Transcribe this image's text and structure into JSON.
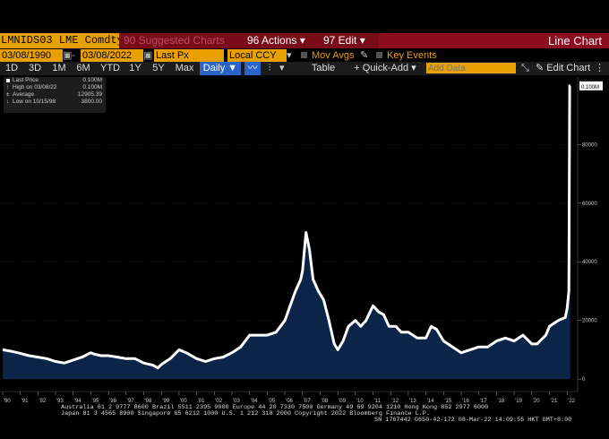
{
  "toolbar1": {
    "ticker": "LMNIDS03 LME Comdty",
    "suggested": "90 Suggested Charts",
    "actions": "96 Actions ▾",
    "edit": "97 Edit ▾",
    "chart_title": "Line Chart"
  },
  "toolbar2": {
    "start_date": "03/08/1990",
    "end_date": "03/08/2022",
    "field": "Last Px",
    "currency": "Local CCY",
    "mov_avgs": "Mov Avgs",
    "key_events": "Key Events"
  },
  "toolbar3": {
    "ranges": [
      "1D",
      "3D",
      "1M",
      "6M",
      "YTD",
      "1Y",
      "5Y",
      "Max"
    ],
    "frequency": "Daily ▼",
    "table": "Table",
    "quick_add": "+ Quick-Add ▾",
    "add_data_placeholder": "Add Data",
    "edit_chart": "Edit Chart"
  },
  "legend": {
    "last_price_label": "Last Price",
    "last_price_value": "0.100M",
    "high_label": "High on 03/08/22",
    "high_value": "0.100M",
    "average_label": "Average",
    "average_value": "12905.39",
    "low_label": "Low on 10/15/98",
    "low_value": "3800.00"
  },
  "footer": {
    "line1": "Australia 61 2 9777 8600  Brazil 5511 2395 9000  Europe 44 20 7330 7500  Germany 49 69 9204 1210  Hong Kong 852 2977 6000",
    "line2": "Japan 81 3 4565 8900          Singapore 65 6212 1000          U.S. 1 212 318 2000           Copyright 2022 Bloomberg Finance L.P.",
    "line3": "SN 1767442 G650-42-172 08-Mar-22 14:09:55 HKT  GMT+8:00"
  },
  "colors": {
    "line": "#ffffff",
    "fill": "#0b2447",
    "accent": "#e8a000",
    "header": "#8b0d1e"
  },
  "chart_data": {
    "type": "area",
    "series": [
      {
        "name": "Last Price",
        "x": [
          1990.0,
          1990.5,
          1991.0,
          1991.5,
          1992.0,
          1992.5,
          1993.0,
          1993.5,
          1994.0,
          1994.5,
          1995.0,
          1995.2,
          1995.6,
          1996.0,
          1996.5,
          1997.0,
          1997.5,
          1998.0,
          1998.5,
          1998.8,
          1999.0,
          1999.5,
          2000.0,
          2000.4,
          2001.0,
          2001.5,
          2002.0,
          2002.5,
          2003.0,
          2003.5,
          2004.0,
          2004.5,
          2005.0,
          2005.5,
          2006.0,
          2006.3,
          2006.6,
          2006.9,
          2007.0,
          2007.2,
          2007.4,
          2007.6,
          2007.9,
          2008.2,
          2008.5,
          2008.8,
          2009.0,
          2009.3,
          2009.6,
          2010.0,
          2010.3,
          2010.6,
          2011.0,
          2011.3,
          2011.6,
          2011.9,
          2012.3,
          2012.6,
          2013.0,
          2013.5,
          2014.0,
          2014.3,
          2014.6,
          2015.0,
          2015.5,
          2016.0,
          2016.5,
          2017.0,
          2017.5,
          2018.0,
          2018.5,
          2019.0,
          2019.5,
          2020.0,
          2020.3,
          2020.8,
          2021.0,
          2021.5,
          2021.9,
          2022.0,
          2022.1,
          2022.15,
          2022.18
        ],
        "values": [
          10000,
          9500,
          8800,
          8000,
          7500,
          7000,
          6000,
          5500,
          6500,
          7500,
          9000,
          8500,
          8000,
          8000,
          7500,
          7000,
          7000,
          5500,
          4800,
          3800,
          5000,
          7000,
          10000,
          9000,
          7000,
          6000,
          7000,
          7500,
          9000,
          11000,
          15000,
          15000,
          15000,
          16000,
          20000,
          25000,
          30000,
          34000,
          37000,
          50000,
          44000,
          34000,
          30000,
          27000,
          20000,
          12000,
          10000,
          13000,
          18000,
          20000,
          18000,
          20000,
          25000,
          23000,
          22000,
          18000,
          18000,
          16000,
          16000,
          14000,
          14000,
          18000,
          17000,
          13000,
          11000,
          9000,
          10000,
          11000,
          11000,
          13000,
          14000,
          13000,
          15000,
          12000,
          12000,
          15000,
          18000,
          20000,
          21000,
          24000,
          30000,
          100000,
          100000
        ]
      }
    ],
    "xlim": [
      1989.85,
      2022.6
    ],
    "ylim": [
      -3000,
      103000
    ],
    "x_tick_labels": [
      "'90",
      "'91",
      "'92",
      "'93",
      "'94",
      "'95",
      "'96",
      "'97",
      "'98",
      "'99",
      "'00",
      "'01",
      "'02",
      "'03",
      "'04",
      "'05",
      "'06",
      "'07",
      "'08",
      "'09",
      "'10",
      "'11",
      "'12",
      "'13",
      "'14",
      "'15",
      "'16",
      "'17",
      "'18",
      "'19",
      "'20",
      "'21",
      "'22"
    ],
    "y_ticks": [
      0,
      20000,
      40000,
      60000,
      80000
    ],
    "y_tick_labels": [
      "0",
      "20000",
      "40000",
      "60000",
      "80000"
    ],
    "last_value_label": "0.100M",
    "grid": true,
    "legend_position": "top-left"
  }
}
